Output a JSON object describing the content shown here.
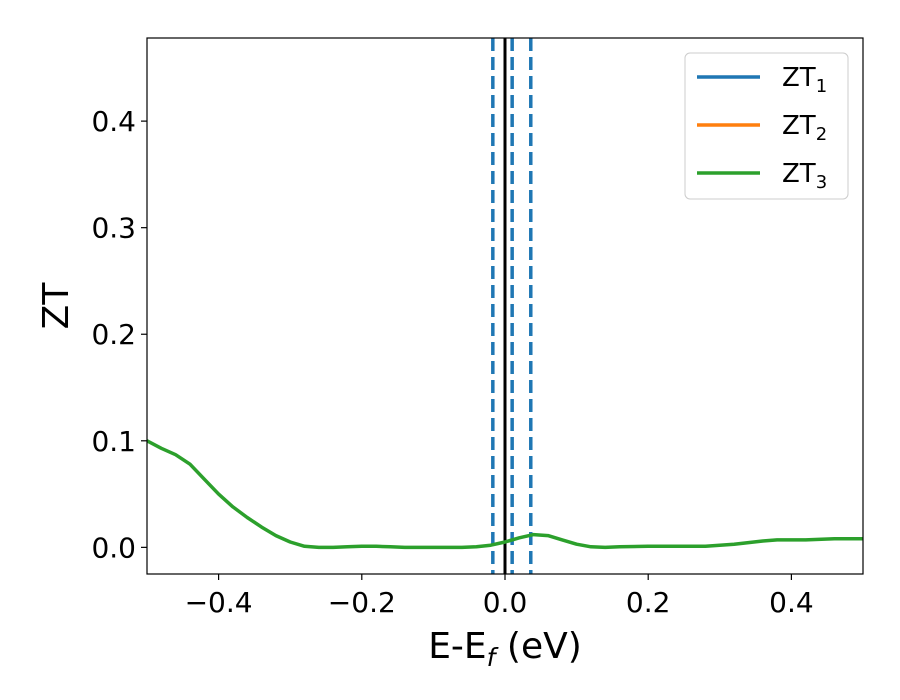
{
  "chart_data": {
    "type": "line",
    "title": "",
    "xlabel": {
      "base": "E-E",
      "sub": "f",
      "suffix": " (eV)"
    },
    "ylabel": "ZT",
    "xlim": [
      -0.5,
      0.5
    ],
    "ylim": [
      -0.025,
      0.478
    ],
    "xticks": [
      -0.4,
      -0.2,
      0.0,
      0.2,
      0.4
    ],
    "xtick_labels": [
      "−0.4",
      "−0.2",
      "0.0",
      "0.2",
      "0.4"
    ],
    "yticks": [
      0.0,
      0.1,
      0.2,
      0.3,
      0.4
    ],
    "ytick_labels": [
      "0.0",
      "0.1",
      "0.2",
      "0.3",
      "0.4"
    ],
    "grid": false,
    "legend_position": "top-right",
    "colors": {
      "zt1": "#1f77b4",
      "zt2": "#ff7f0e",
      "zt3": "#2ca02c",
      "fermi": "#000000",
      "dashed": "#1f77b4"
    },
    "series": [
      {
        "name": "ZT",
        "sub": "1",
        "color": "#1f77b4",
        "x": [],
        "y": []
      },
      {
        "name": "ZT",
        "sub": "2",
        "color": "#ff7f0e",
        "x": [],
        "y": []
      },
      {
        "name": "ZT",
        "sub": "3",
        "color": "#2ca02c",
        "x": [
          -0.5,
          -0.48,
          -0.46,
          -0.44,
          -0.42,
          -0.4,
          -0.38,
          -0.36,
          -0.34,
          -0.32,
          -0.3,
          -0.28,
          -0.26,
          -0.24,
          -0.22,
          -0.2,
          -0.18,
          -0.16,
          -0.14,
          -0.12,
          -0.1,
          -0.08,
          -0.06,
          -0.04,
          -0.02,
          0.0,
          0.02,
          0.04,
          0.06,
          0.08,
          0.1,
          0.12,
          0.14,
          0.16,
          0.2,
          0.24,
          0.28,
          0.32,
          0.36,
          0.38,
          0.42,
          0.46,
          0.5
        ],
        "y": [
          0.1,
          0.093,
          0.087,
          0.078,
          0.064,
          0.05,
          0.038,
          0.028,
          0.019,
          0.011,
          0.005,
          0.001,
          0.0,
          0.0,
          0.0005,
          0.001,
          0.001,
          0.0005,
          0.0,
          0.0,
          0.0,
          0.0,
          0.0,
          0.0005,
          0.002,
          0.005,
          0.009,
          0.012,
          0.011,
          0.007,
          0.003,
          0.0005,
          0.0,
          0.0005,
          0.001,
          0.001,
          0.001,
          0.003,
          0.006,
          0.007,
          0.007,
          0.008,
          0.008
        ]
      }
    ],
    "vlines": [
      {
        "x": 0.0,
        "style": "solid",
        "color": "#000000"
      },
      {
        "x": -0.017,
        "style": "dashed",
        "color": "#1f77b4"
      },
      {
        "x": 0.01,
        "style": "dashed",
        "color": "#1f77b4"
      },
      {
        "x": 0.036,
        "style": "dashed",
        "color": "#1f77b4"
      }
    ]
  }
}
